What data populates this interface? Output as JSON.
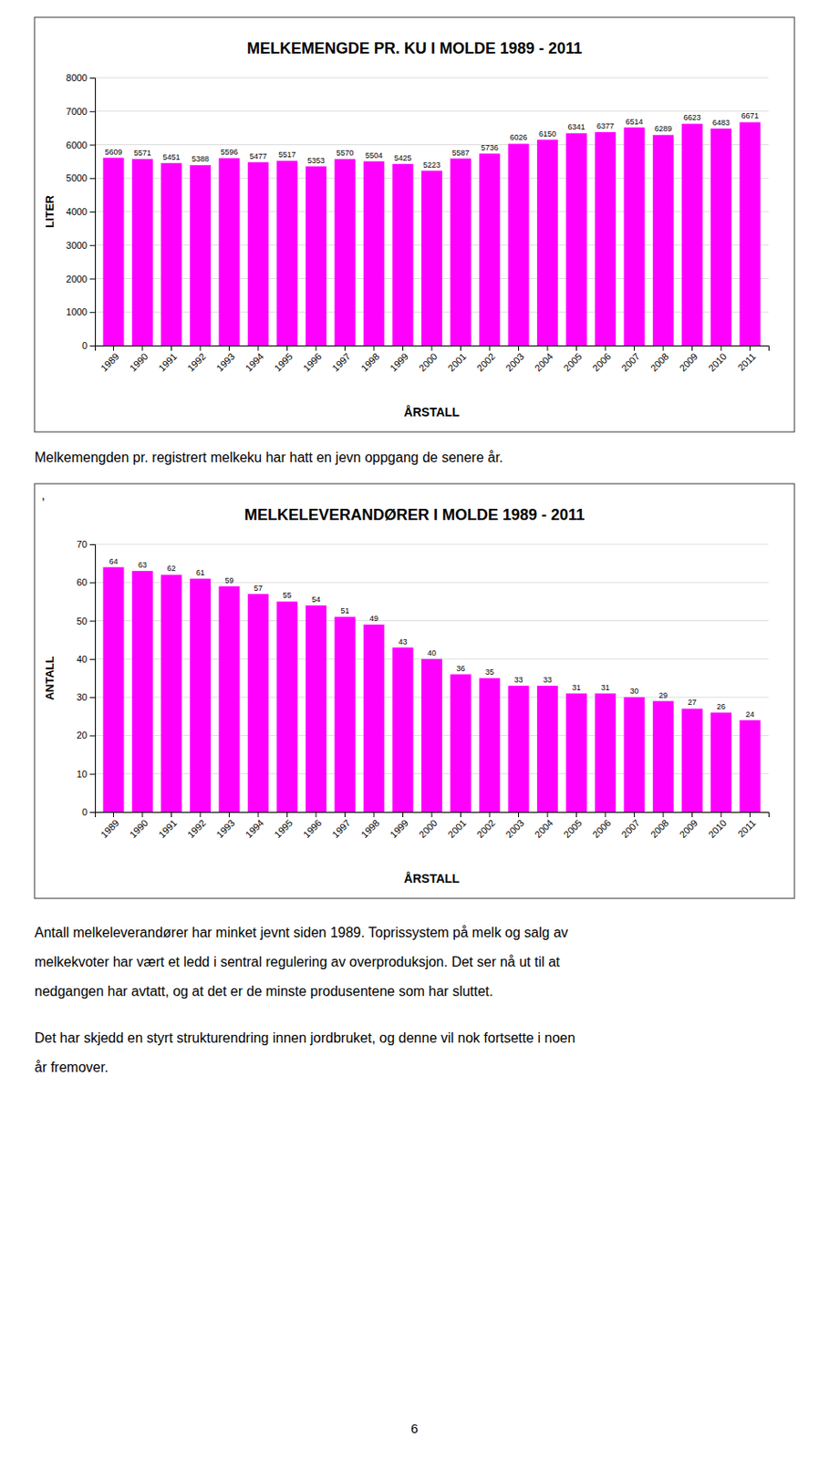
{
  "chart_data": [
    {
      "type": "bar",
      "title": "MELKEMENGDE PR. KU I MOLDE  1989 - 2011",
      "categories": [
        "1989",
        "1990",
        "1991",
        "1992",
        "1993",
        "1994",
        "1995",
        "1996",
        "1997",
        "1998",
        "1999",
        "2000",
        "2001",
        "2002",
        "2003",
        "2004",
        "2005",
        "2006",
        "2007",
        "2008",
        "2009",
        "2010",
        "2011"
      ],
      "values": [
        5609,
        5571,
        5451,
        5388,
        5596,
        5477,
        5517,
        5353,
        5570,
        5504,
        5425,
        5223,
        5587,
        5736,
        6026,
        6150,
        6341,
        6377,
        6514,
        6289,
        6623,
        6483,
        6671
      ],
      "y_label": "LITER",
      "x_label": "ÅRSTALL",
      "ylim": [
        0,
        8000
      ],
      "yticks": [
        0,
        1000,
        2000,
        3000,
        4000,
        5000,
        6000,
        7000,
        8000
      ],
      "color": "#FF00FF",
      "grid": true,
      "data_labels": true
    },
    {
      "type": "bar",
      "title": "MELKELEVERANDØRER I MOLDE  1989 - 2011",
      "categories": [
        "1989",
        "1990",
        "1991",
        "1992",
        "1993",
        "1994",
        "1995",
        "1996",
        "1997",
        "1998",
        "1999",
        "2000",
        "2001",
        "2002",
        "2003",
        "2004",
        "2005",
        "2006",
        "2007",
        "2008",
        "2009",
        "2010",
        "2011"
      ],
      "values": [
        64,
        63,
        62,
        61,
        59,
        57,
        55,
        54,
        51,
        49,
        43,
        40,
        36,
        35,
        33,
        33,
        31,
        31,
        30,
        29,
        27,
        26,
        24
      ],
      "y_label": "ANTALL",
      "x_label": "ÅRSTALL",
      "ylim": [
        0,
        70
      ],
      "yticks": [
        0,
        10,
        20,
        30,
        40,
        50,
        60,
        70
      ],
      "color": "#FF00FF",
      "grid": true,
      "data_labels": true
    }
  ],
  "annotations": {
    "text1": "Melkemengden pr. registrert melkeku har hatt en jevn oppgang de senere år.",
    "comma_note": ",",
    "text2_lines": [
      "Antall melkeleverandører har minket jevnt siden 1989. Toprissystem på melk og salg av",
      "melkekvoter har vært et ledd i sentral regulering av overproduksjon. Det ser nå ut til at",
      "nedgangen har avtatt, og at det er de minste produsentene som har sluttet.",
      "Det har skjedd en styrt strukturendring innen jordbruket, og denne vil nok fortsette i noen",
      "år fremover."
    ],
    "page_number": "6"
  }
}
